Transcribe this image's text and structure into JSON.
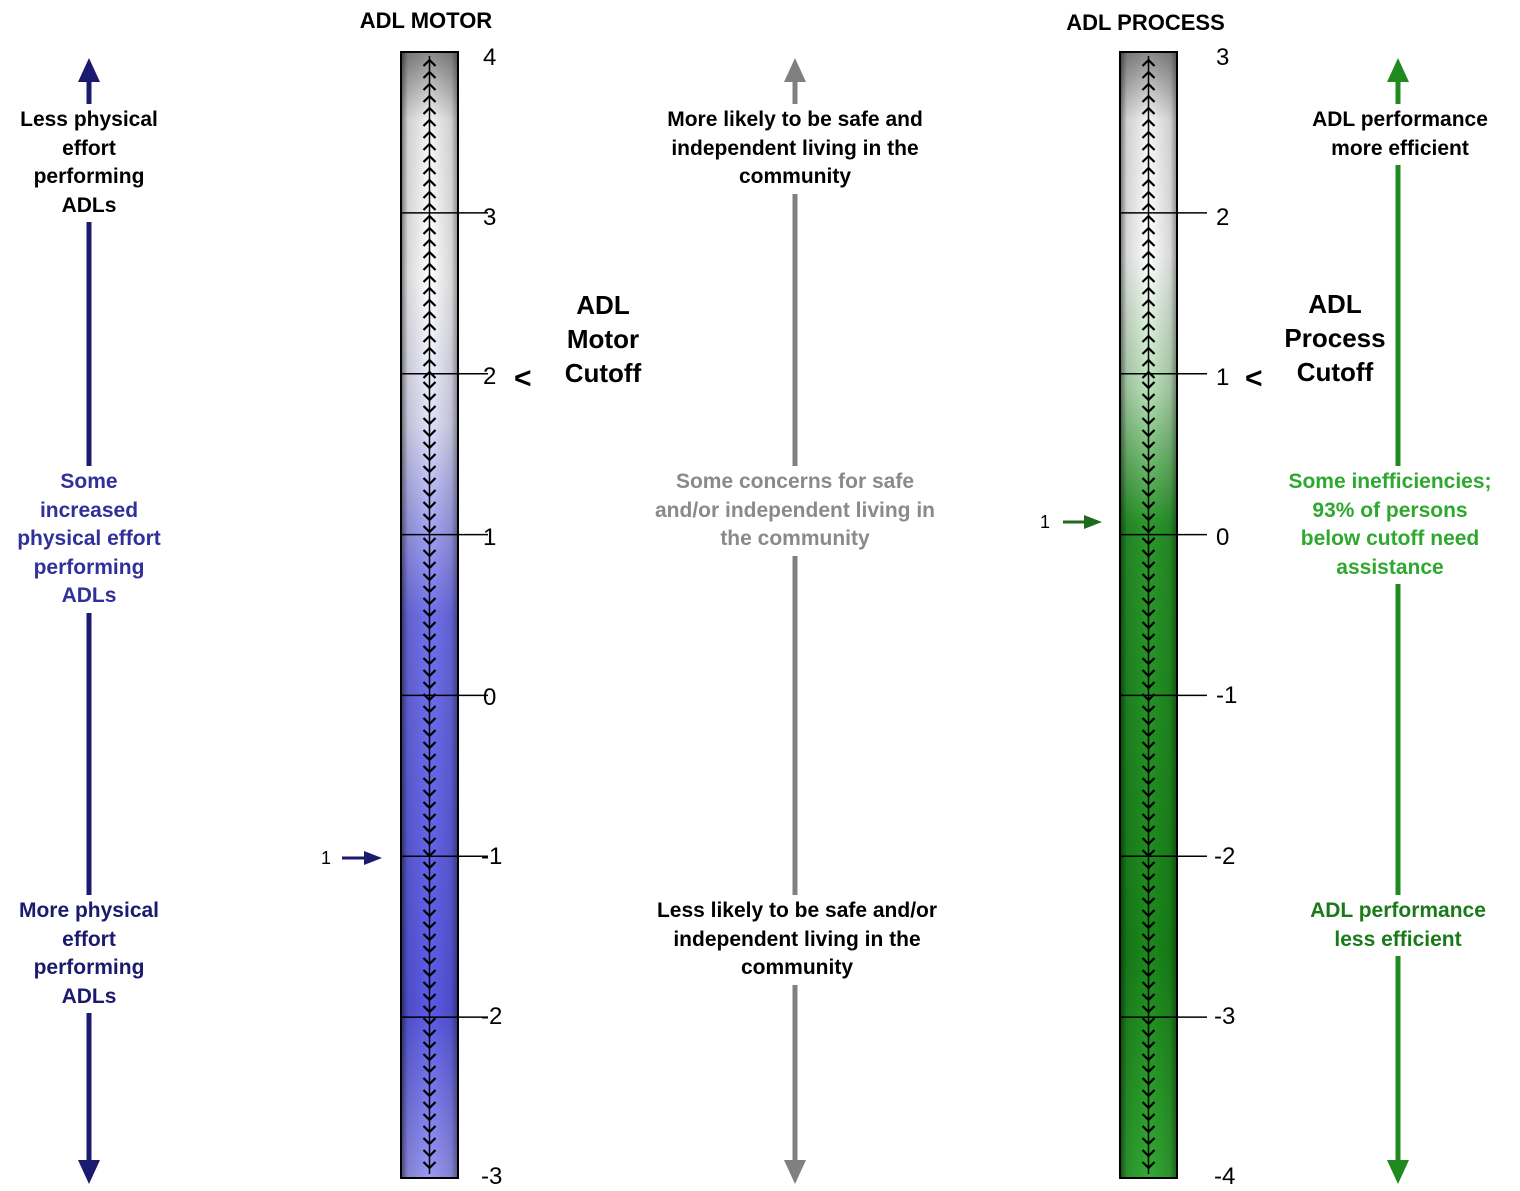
{
  "colors": {
    "navy": "#1a1a6e",
    "motor_blue": "#6a6af0",
    "motor_text": "#30309a",
    "gray": "#808080",
    "process_green": "#1f8a1f",
    "green_dark": "#1a7a1a",
    "green_mid": "#2ea82e"
  },
  "motor": {
    "title": "ADL MOTOR",
    "ticks": [
      "4",
      "3",
      "2",
      "1",
      "0",
      "-1",
      "-2",
      "-3"
    ],
    "cutoff_marker": "<",
    "cutoff_label": "ADL\nMotor\nCutoff",
    "cutoff_value": 2,
    "measure_label": "1",
    "measure_value": -1,
    "range": [
      -3,
      4
    ]
  },
  "process": {
    "title": "ADL PROCESS",
    "ticks": [
      "3",
      "2",
      "1",
      "0",
      "-1",
      "-2",
      "-3",
      "-4"
    ],
    "cutoff_marker": "<",
    "cutoff_label": "ADL\nProcess\nCutoff",
    "cutoff_value": 1,
    "measure_label": "1",
    "measure_value": 0.1,
    "range": [
      -4,
      3
    ]
  },
  "left_axis": {
    "top": "Less physical\neffort\nperforming\nADLs",
    "middle": "Some\nincreased\nphysical effort\nperforming\nADLs",
    "bottom": "More physical\neffort\nperforming\nADLs"
  },
  "center_axis": {
    "top": "More likely to be safe and\nindependent living in the\ncommunity",
    "middle": "Some concerns for safe\nand/or independent living in\nthe community",
    "bottom": "Less likely to be safe and/or\nindependent  living in the\ncommunity"
  },
  "right_axis": {
    "top": "ADL performance\nmore efficient",
    "middle": "Some inefficiencies;\n93% of persons\nbelow cutoff need\nassistance",
    "bottom": "ADL performance\nless efficient"
  }
}
